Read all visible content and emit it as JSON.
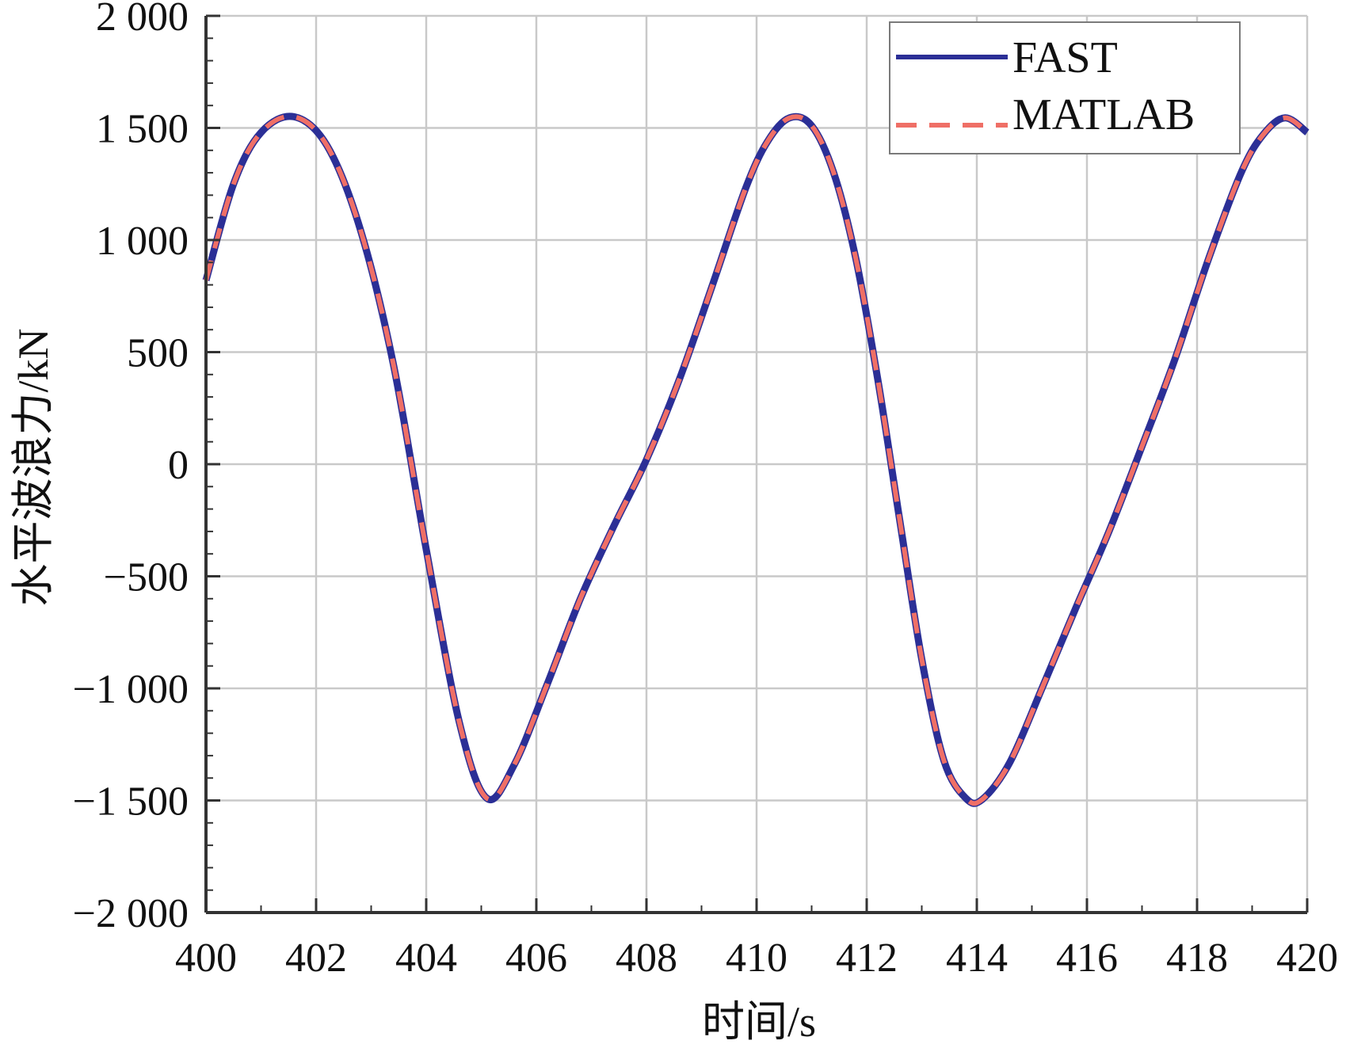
{
  "chart_data": {
    "type": "line",
    "title": "",
    "xlabel": "时间/s",
    "ylabel": "水平波浪力/kN",
    "xlim": [
      400,
      420
    ],
    "ylim": [
      -2000,
      2000
    ],
    "x_ticks": [
      400,
      402,
      404,
      406,
      408,
      410,
      412,
      414,
      416,
      418,
      420
    ],
    "x_tick_labels": [
      "400",
      "402",
      "404",
      "406",
      "408",
      "410",
      "412",
      "414",
      "416",
      "418",
      "420"
    ],
    "y_ticks": [
      -2000,
      -1500,
      -1000,
      -500,
      0,
      500,
      1000,
      1500,
      2000
    ],
    "y_tick_labels": [
      "−2 000",
      "−1 500",
      "−1 000",
      "−500",
      "0",
      "500",
      "1 000",
      "1 500",
      "2 000"
    ],
    "grid": true,
    "legend_position": "top-right",
    "series": [
      {
        "name": "FAST",
        "style": "solid",
        "color": "#2b2f96",
        "x": [
          400,
          400.5,
          401,
          401.6,
          402.2,
          402.8,
          403.4,
          404,
          404.6,
          405.1,
          405.6,
          406.2,
          406.8,
          407.4,
          408,
          408.6,
          409.2,
          409.8,
          410.2,
          410.6,
          411,
          411.4,
          411.8,
          412.2,
          412.6,
          413,
          413.4,
          413.8,
          414.1,
          414.6,
          415.2,
          415.8,
          416.4,
          417,
          417.6,
          418.2,
          418.8,
          419.2,
          419.6,
          420
        ],
        "y": [
          820,
          1250,
          1480,
          1550,
          1420,
          1050,
          450,
          -380,
          -1150,
          -1490,
          -1340,
          -980,
          -600,
          -280,
          20,
          380,
          800,
          1230,
          1440,
          1545,
          1510,
          1300,
          920,
          380,
          -250,
          -870,
          -1320,
          -1490,
          -1495,
          -1330,
          -990,
          -640,
          -300,
          80,
          470,
          910,
          1300,
          1470,
          1545,
          1480
        ]
      },
      {
        "name": "MATLAB",
        "style": "dashed",
        "color": "#ef6f66",
        "x": [
          400,
          400.5,
          401,
          401.6,
          402.2,
          402.8,
          403.4,
          404,
          404.6,
          405.1,
          405.6,
          406.2,
          406.8,
          407.4,
          408,
          408.6,
          409.2,
          409.8,
          410.2,
          410.6,
          411,
          411.4,
          411.8,
          412.2,
          412.6,
          413,
          413.4,
          413.8,
          414.1,
          414.6,
          415.2,
          415.8,
          416.4,
          417,
          417.6,
          418.2,
          418.8,
          419.2,
          419.6,
          420
        ],
        "y": [
          820,
          1250,
          1480,
          1550,
          1420,
          1050,
          450,
          -380,
          -1150,
          -1490,
          -1340,
          -980,
          -600,
          -280,
          20,
          380,
          800,
          1230,
          1440,
          1545,
          1510,
          1300,
          920,
          380,
          -250,
          -870,
          -1320,
          -1490,
          -1495,
          -1330,
          -990,
          -640,
          -300,
          80,
          470,
          910,
          1300,
          1470,
          1545,
          1480
        ]
      }
    ]
  }
}
